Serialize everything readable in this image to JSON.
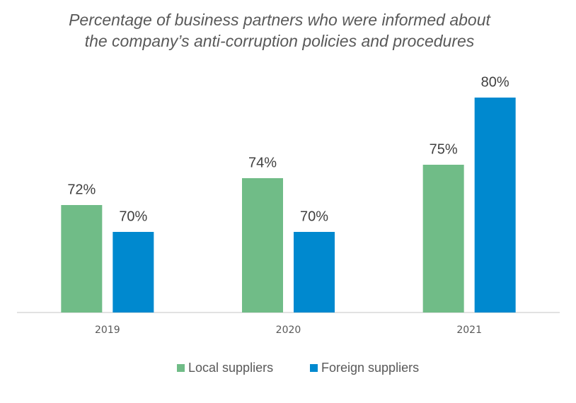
{
  "chart_data": {
    "type": "bar",
    "title": "Percentage of business partners who were informed about the company’s anti-corruption policies and procedures",
    "categories": [
      "2019",
      "2020",
      "2021"
    ],
    "series": [
      {
        "name": "Local suppliers",
        "color": "#70bc87",
        "values": [
          72,
          74,
          75
        ],
        "value_labels": [
          "72%",
          "74%",
          "75%"
        ]
      },
      {
        "name": "Foreign suppliers",
        "color": "#0089cf",
        "values": [
          70,
          70,
          80
        ],
        "value_labels": [
          "70%",
          "70%",
          "80%"
        ]
      }
    ],
    "ylim": [
      64,
      82
    ],
    "legend": "bottom"
  }
}
